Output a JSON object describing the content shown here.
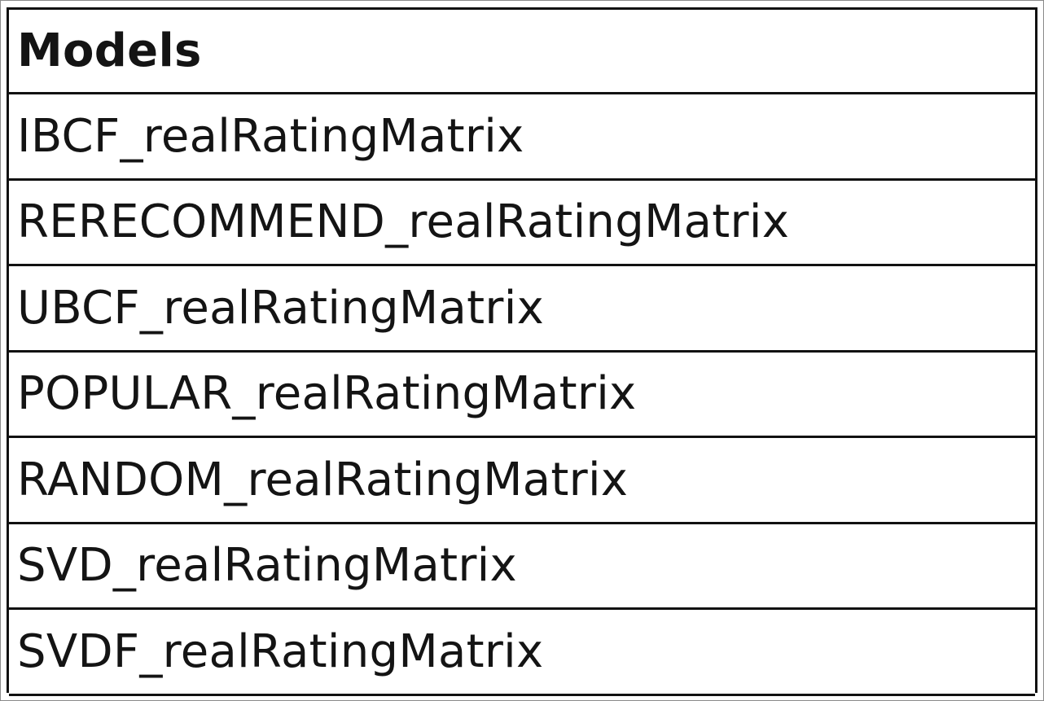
{
  "table": {
    "header": "Models",
    "rows": [
      "IBCF_realRatingMatrix",
      "RERECOMMEND_realRatingMatrix",
      "UBCF_realRatingMatrix",
      "POPULAR_realRatingMatrix",
      "RANDOM_realRatingMatrix",
      "SVD_realRatingMatrix",
      "SVDF_realRatingMatrix"
    ]
  },
  "colors": {
    "border": "#111111",
    "text": "#141414",
    "background": "#ffffff"
  }
}
